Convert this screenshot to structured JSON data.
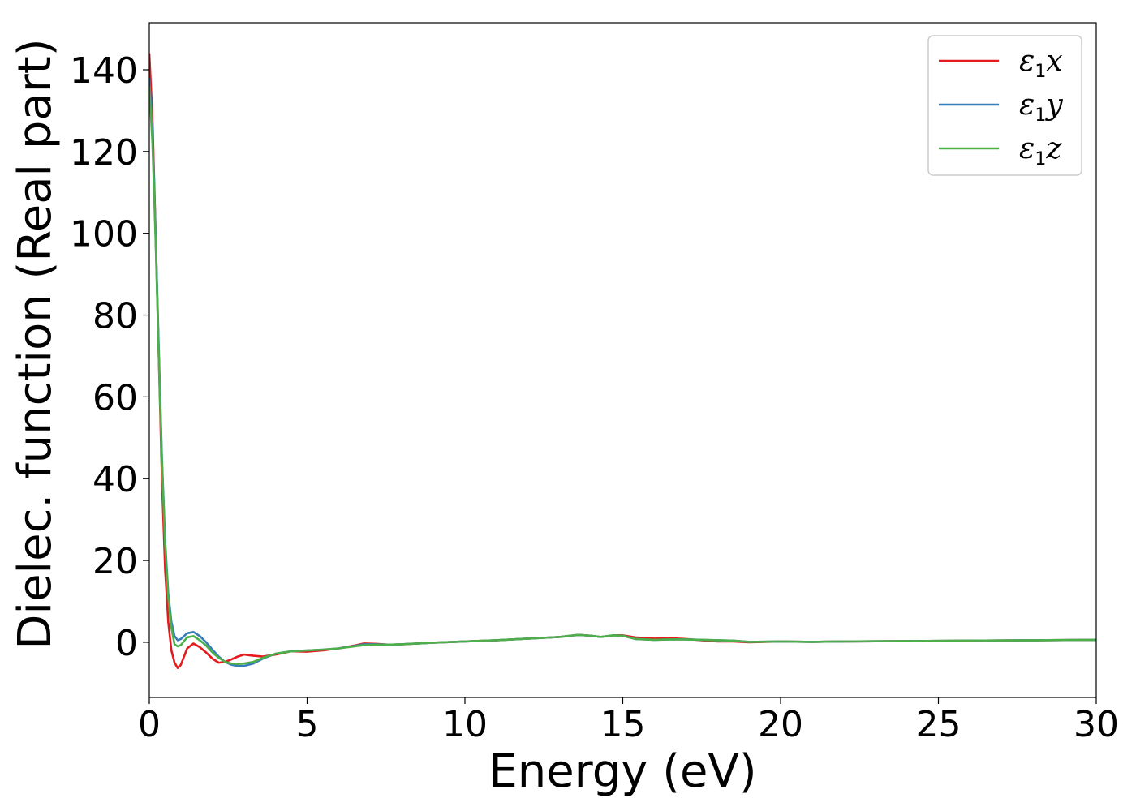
{
  "chart_data": {
    "type": "line",
    "title": "",
    "xlabel": "Energy (eV)",
    "ylabel": "Dielec. function (Real part)",
    "xlim": [
      0,
      30
    ],
    "ylim": [
      -13.5,
      151.5
    ],
    "xticks": [
      0,
      5,
      10,
      15,
      20,
      25,
      30
    ],
    "yticks": [
      0,
      20,
      40,
      60,
      80,
      100,
      120,
      140
    ],
    "grid": false,
    "legend_position": "top-right",
    "series": [
      {
        "name": "ε1x",
        "legend": {
          "base": "ε",
          "sub": "1",
          "suffix": "x"
        },
        "color": "#e41a1c",
        "x": [
          0,
          0.1,
          0.2,
          0.3,
          0.4,
          0.5,
          0.6,
          0.7,
          0.8,
          0.9,
          1.0,
          1.1,
          1.2,
          1.4,
          1.6,
          1.8,
          2.0,
          2.2,
          2.4,
          2.6,
          2.8,
          3.0,
          3.3,
          3.6,
          4.0,
          4.5,
          5.0,
          5.5,
          6.0,
          6.5,
          6.8,
          7.2,
          7.6,
          8.0,
          9.0,
          10.0,
          11.0,
          12.0,
          13.0,
          13.6,
          14.0,
          14.3,
          14.7,
          15.0,
          15.4,
          16.0,
          16.5,
          17.0,
          17.5,
          18.0,
          18.5,
          19.0,
          20.0,
          21.0,
          22.0,
          24.0,
          26.0,
          28.0,
          30.0
        ],
        "values": [
          144,
          128,
          100,
          70,
          40,
          18,
          5,
          -2,
          -5,
          -6.3,
          -5.5,
          -3.5,
          -1.5,
          -0.3,
          -1.2,
          -2.5,
          -4.0,
          -5.0,
          -4.8,
          -4.2,
          -3.5,
          -3.0,
          -3.3,
          -3.5,
          -3.0,
          -2.2,
          -2.3,
          -2.0,
          -1.5,
          -0.8,
          -0.3,
          -0.4,
          -0.6,
          -0.5,
          -0.1,
          0.2,
          0.5,
          0.9,
          1.3,
          1.8,
          1.6,
          1.3,
          1.7,
          1.7,
          1.2,
          0.9,
          1.0,
          0.8,
          0.5,
          0.2,
          0.2,
          0.0,
          0.2,
          0.1,
          0.2,
          0.3,
          0.4,
          0.5,
          0.6
        ]
      },
      {
        "name": "ε1y",
        "legend": {
          "base": "ε",
          "sub": "1",
          "suffix": "y"
        },
        "color": "#377eb8",
        "x": [
          0,
          0.1,
          0.2,
          0.3,
          0.4,
          0.5,
          0.6,
          0.7,
          0.8,
          0.9,
          1.0,
          1.1,
          1.2,
          1.4,
          1.6,
          1.8,
          2.0,
          2.2,
          2.4,
          2.6,
          2.8,
          3.0,
          3.3,
          3.6,
          4.0,
          4.5,
          5.0,
          5.5,
          6.0,
          6.5,
          6.8,
          7.2,
          7.6,
          8.0,
          9.0,
          10.0,
          11.0,
          12.0,
          13.0,
          13.6,
          14.0,
          14.3,
          14.7,
          15.0,
          15.4,
          16.0,
          16.5,
          17.0,
          17.5,
          18.0,
          18.5,
          19.0,
          20.0,
          21.0,
          22.0,
          24.0,
          26.0,
          28.0,
          30.0
        ],
        "values": [
          138,
          125,
          100,
          72,
          45,
          25,
          12,
          5,
          1.5,
          0.5,
          0.8,
          1.5,
          2.2,
          2.5,
          1.5,
          0,
          -1.8,
          -3.5,
          -4.8,
          -5.5,
          -5.8,
          -5.8,
          -5.2,
          -4.0,
          -2.8,
          -2.2,
          -2.0,
          -1.8,
          -1.5,
          -0.9,
          -0.5,
          -0.5,
          -0.6,
          -0.5,
          -0.1,
          0.2,
          0.5,
          0.9,
          1.3,
          1.8,
          1.6,
          1.3,
          1.7,
          1.6,
          0.8,
          0.6,
          0.7,
          0.7,
          0.6,
          0.5,
          0.4,
          0.1,
          0.2,
          0.1,
          0.2,
          0.3,
          0.4,
          0.5,
          0.6
        ]
      },
      {
        "name": "ε1z",
        "legend": {
          "base": "ε",
          "sub": "1",
          "suffix": "z"
        },
        "color": "#4daf4a",
        "x": [
          0,
          0.1,
          0.2,
          0.3,
          0.4,
          0.5,
          0.6,
          0.7,
          0.8,
          0.9,
          1.0,
          1.1,
          1.2,
          1.4,
          1.6,
          1.8,
          2.0,
          2.2,
          2.4,
          2.6,
          2.8,
          3.0,
          3.3,
          3.6,
          4.0,
          4.5,
          5.0,
          5.5,
          6.0,
          6.5,
          6.8,
          7.2,
          7.6,
          8.0,
          9.0,
          10.0,
          11.0,
          12.0,
          13.0,
          13.6,
          14.0,
          14.3,
          14.7,
          15.0,
          15.4,
          16.0,
          16.5,
          17.0,
          17.5,
          18.0,
          18.5,
          19.0,
          20.0,
          21.0,
          22.0,
          24.0,
          26.0,
          28.0,
          30.0
        ],
        "values": [
          136,
          122,
          98,
          70,
          44,
          24,
          11,
          3.5,
          -0.5,
          -1.0,
          -0.7,
          0.3,
          1.2,
          1.5,
          0.5,
          -0.8,
          -2.5,
          -3.8,
          -4.8,
          -5.2,
          -5.3,
          -5.2,
          -4.8,
          -3.8,
          -2.8,
          -2.2,
          -2.0,
          -1.8,
          -1.5,
          -1.0,
          -0.7,
          -0.6,
          -0.6,
          -0.5,
          -0.1,
          0.2,
          0.5,
          0.9,
          1.3,
          1.8,
          1.6,
          1.3,
          1.7,
          1.6,
          0.8,
          0.6,
          0.7,
          0.7,
          0.6,
          0.5,
          0.4,
          0.1,
          0.2,
          0.1,
          0.2,
          0.3,
          0.4,
          0.5,
          0.6
        ]
      }
    ]
  }
}
